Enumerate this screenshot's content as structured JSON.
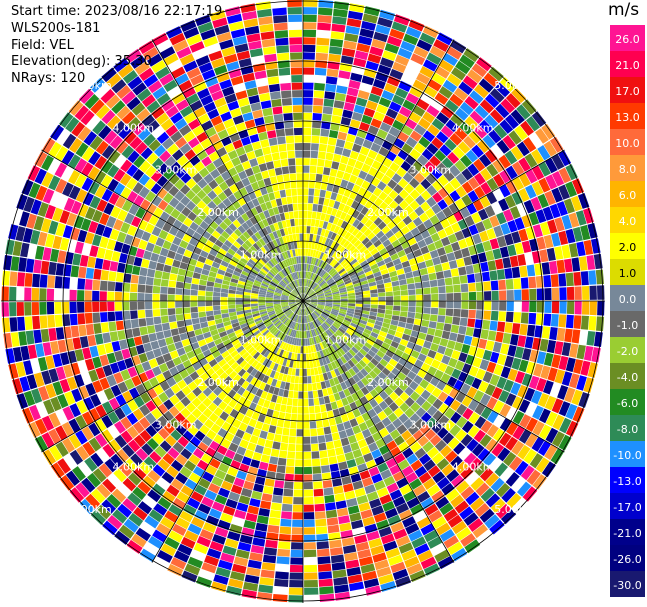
{
  "info": {
    "start_time": "Start time: 2023/08/16 22:17:19",
    "instrument": "WLS200s-181",
    "field": "Field: VEL",
    "elevation": "Elevation(deg): 35.30",
    "nrays": "NRays: 120"
  },
  "colorbar": {
    "unit": "m/s",
    "labels": [
      "26.0",
      "21.0",
      "17.0",
      "13.0",
      "10.0",
      "8.0",
      "6.0",
      "4.0",
      "2.0",
      "1.0",
      "0.0",
      "-1.0",
      "-2.0",
      "-4.0",
      "-6.0",
      "-8.0",
      "-10.0",
      "-13.0",
      "-17.0",
      "-21.0",
      "-26.0",
      "-30.0"
    ],
    "colors": [
      "#ff1493",
      "#ff0050",
      "#f01010",
      "#ff3a00",
      "#ff6a3a",
      "#ff9a3a",
      "#ffb400",
      "#ffd700",
      "#ffff00",
      "#dcdc00",
      "#778899",
      "#696969",
      "#9acd32",
      "#6b8e23",
      "#228b22",
      "#2e8b57",
      "#1e90ff",
      "#0000ff",
      "#0000cd",
      "#00008b",
      "#000080",
      "#191970"
    ],
    "light_label_indices": [
      8,
      9
    ]
  },
  "chart_data": {
    "type": "ppi-polar",
    "field": "VEL",
    "unit": "m/s",
    "nrays": 120,
    "elevation_deg": 35.3,
    "range_ring_labels_km": [
      "1.00km",
      "2.00km",
      "3.00km",
      "4.00km",
      "5.00km"
    ],
    "spoke_angles_deg": [
      0,
      30,
      60,
      90,
      120,
      150,
      180,
      210,
      240,
      270,
      300,
      330
    ],
    "velocity_scale": [
      -30,
      -26,
      -21,
      -17,
      -13,
      -10,
      -8,
      -6,
      -4,
      -2,
      -1,
      0,
      1,
      2,
      4,
      6,
      8,
      10,
      13,
      17,
      21,
      26
    ],
    "near_field_dominant": [
      "0.0",
      "-1.0",
      "-2.0",
      "2.0"
    ],
    "far_field_character": "noisy"
  }
}
